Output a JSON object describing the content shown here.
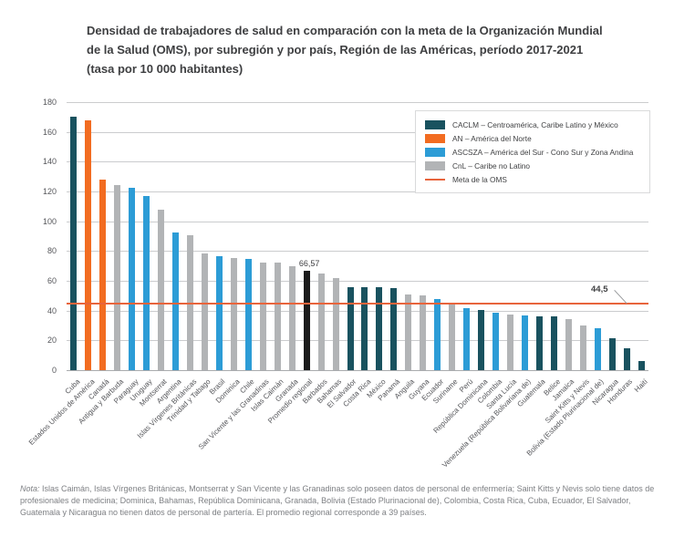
{
  "title_lines": [
    "Densidad de trabajadores de salud en comparación con la meta de la Organización Mundial",
    "de la Salud (OMS), por subregión y por país, Región de las Américas, período 2017-2021",
    "(tasa por 10 000 habitantes)"
  ],
  "note": {
    "label": "Nota:",
    "text": "Islas Caimán, Islas Vírgenes Británicas, Montserrat y San Vicente y las Granadinas solo poseen datos de personal de enfermería; Saint Kitts y Nevis solo tiene datos de profesionales de medicina; Dominica, Bahamas, República Dominicana, Granada, Bolivia (Estado Plurinacional de), Colombia, Costa Rica, Cuba, Ecuador, El Salvador, Guatemala y Nicaragua no tienen datos de personal de partería. El promedio regional corresponde a 39 países."
  },
  "chart_data": {
    "type": "bar",
    "title": "Densidad de trabajadores de salud en comparación con la meta de la Organización Mundial de la Salud (OMS), por subregión y por país, Región de las Américas, período 2017-2021 (tasa por 10 000 habitantes)",
    "xlabel": "",
    "ylabel": "tasa por 10 000 habitantes",
    "ylim": [
      0,
      180
    ],
    "yticks": [
      0,
      20,
      40,
      60,
      80,
      100,
      120,
      140,
      160,
      180
    ],
    "grid": true,
    "legend_position": "top-right",
    "target_line": {
      "label": "Meta de la OMS",
      "value": 44.5,
      "display": "44,5",
      "color": "#E8643C"
    },
    "group_colors": {
      "CACLM": "#19525F",
      "AN": "#F26C21",
      "ASCSZA": "#2C9CD6",
      "CnL": "#B2B4B6",
      "PROM": "#1B1B1B"
    },
    "legend": [
      {
        "group": "CACLM",
        "label": "CACLM – Centroamérica, Caribe Latino y México"
      },
      {
        "group": "AN",
        "label": "AN – América del Norte"
      },
      {
        "group": "ASCSZA",
        "label": "ASCSZA – América del Sur - Cono Sur y Zona Andina"
      },
      {
        "group": "CnL",
        "label": "CnL – Caribe no Latino"
      },
      {
        "group": "META",
        "label": "Meta de la OMS",
        "type": "line"
      }
    ],
    "points": [
      {
        "country": "Cuba",
        "group": "CACLM",
        "value": 170
      },
      {
        "country": "Estados Unidos de América",
        "group": "AN",
        "value": 168
      },
      {
        "country": "Canadá",
        "group": "AN",
        "value": 128
      },
      {
        "country": "Antigua y Barbuda",
        "group": "CnL",
        "value": 124.5
      },
      {
        "country": "Paraguay",
        "group": "ASCSZA",
        "value": 122.5
      },
      {
        "country": "Uruguay",
        "group": "ASCSZA",
        "value": 117
      },
      {
        "country": "Montserrat",
        "group": "CnL",
        "value": 108
      },
      {
        "country": "Argentina",
        "group": "ASCSZA",
        "value": 92.5
      },
      {
        "country": "Islas Vírgenes Británicas",
        "group": "CnL",
        "value": 90.5
      },
      {
        "country": "Trinidad y Tabago",
        "group": "CnL",
        "value": 78.5
      },
      {
        "country": "Brasil",
        "group": "ASCSZA",
        "value": 76.5
      },
      {
        "country": "Dominica",
        "group": "CnL",
        "value": 75.5
      },
      {
        "country": "Chile",
        "group": "ASCSZA",
        "value": 75
      },
      {
        "country": "San Vicente y las Granadinas",
        "group": "CnL",
        "value": 72.5
      },
      {
        "country": "Islas Caimán",
        "group": "CnL",
        "value": 72
      },
      {
        "country": "Granada",
        "group": "CnL",
        "value": 70
      },
      {
        "country": "Promedio regional",
        "group": "PROM",
        "value": 66.57,
        "display": "66,57"
      },
      {
        "country": "Barbados",
        "group": "CnL",
        "value": 65
      },
      {
        "country": "Bahamas",
        "group": "CnL",
        "value": 62
      },
      {
        "country": "El Salvador",
        "group": "CACLM",
        "value": 56
      },
      {
        "country": "Costa Rica",
        "group": "CACLM",
        "value": 55.5
      },
      {
        "country": "México",
        "group": "CACLM",
        "value": 55.5
      },
      {
        "country": "Panamá",
        "group": "CACLM",
        "value": 55
      },
      {
        "country": "Anguila",
        "group": "CnL",
        "value": 51
      },
      {
        "country": "Guyana",
        "group": "CnL",
        "value": 50
      },
      {
        "country": "Ecuador",
        "group": "ASCSZA",
        "value": 48
      },
      {
        "country": "Suriname",
        "group": "CnL",
        "value": 45.5
      },
      {
        "country": "Perú",
        "group": "ASCSZA",
        "value": 41.5
      },
      {
        "country": "República Dominicana",
        "group": "CACLM",
        "value": 40.5
      },
      {
        "country": "Colombia",
        "group": "ASCSZA",
        "value": 38.5
      },
      {
        "country": "Santa Lucía",
        "group": "CnL",
        "value": 37.5
      },
      {
        "country": "Venezuela (República Bolivariana de)",
        "group": "ASCSZA",
        "value": 36.5
      },
      {
        "country": "Guatemala",
        "group": "CACLM",
        "value": 36
      },
      {
        "country": "Belice",
        "group": "CACLM",
        "value": 36
      },
      {
        "country": "Jamaica",
        "group": "CnL",
        "value": 34
      },
      {
        "country": "Saint Kitts y Nevis",
        "group": "CnL",
        "value": 30
      },
      {
        "country": "Bolivia (Estado Plurinacional de)",
        "group": "ASCSZA",
        "value": 28
      },
      {
        "country": "Nicaragua",
        "group": "CACLM",
        "value": 21.5
      },
      {
        "country": "Honduras",
        "group": "CACLM",
        "value": 14.5
      },
      {
        "country": "Haití",
        "group": "CACLM",
        "value": 6
      }
    ]
  }
}
